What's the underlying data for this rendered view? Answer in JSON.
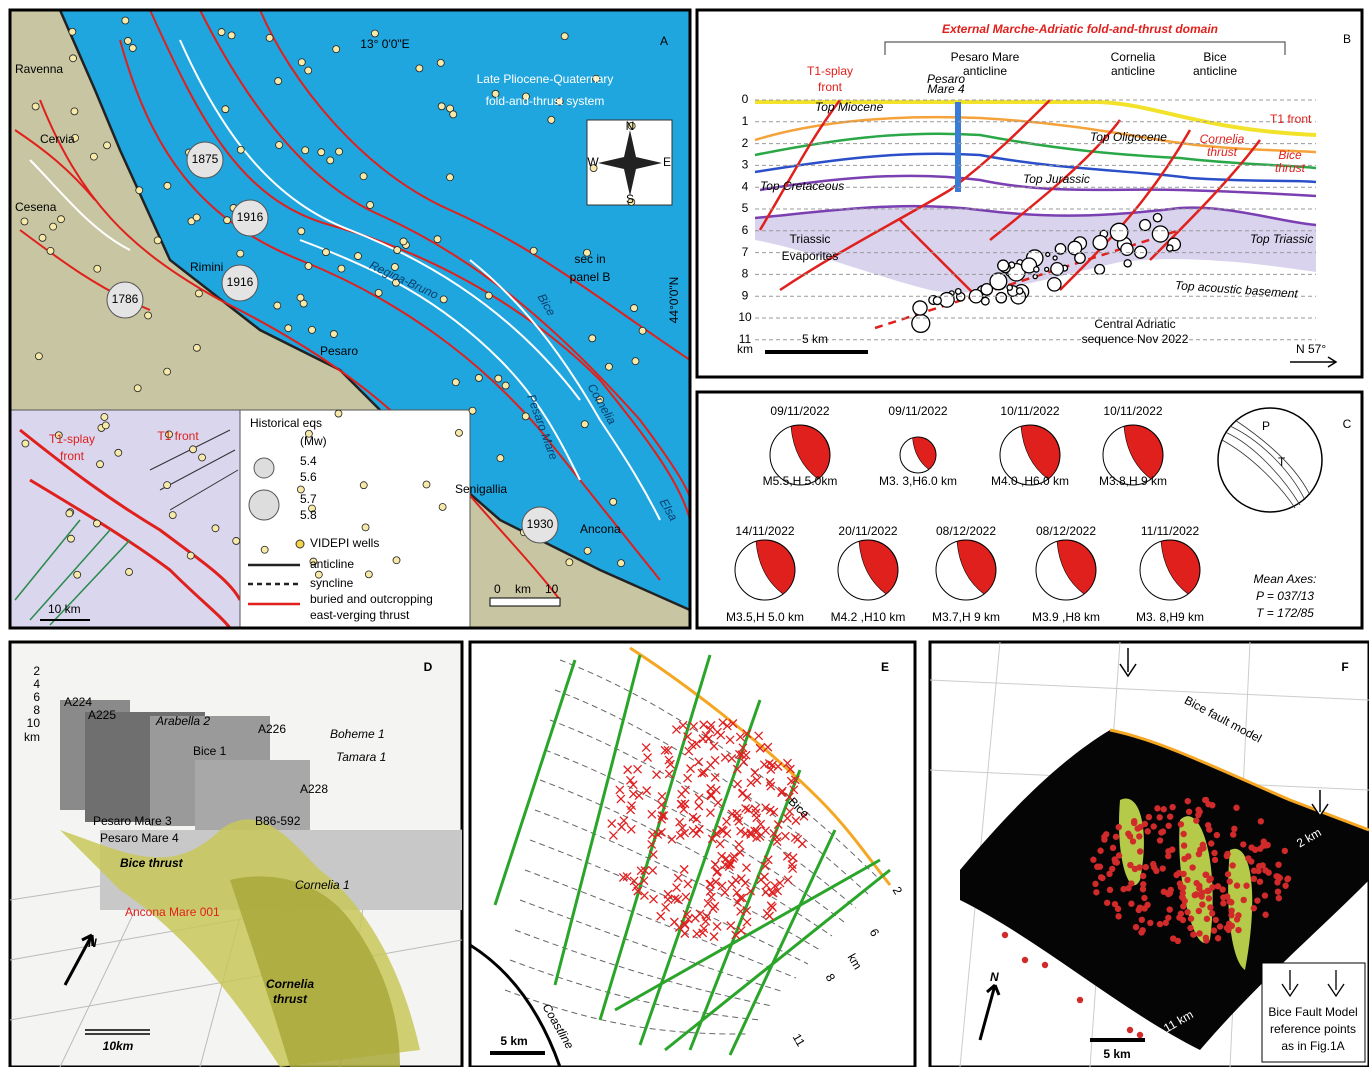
{
  "panel_a": {
    "label": "A",
    "longitude": "13° 0'0\"E",
    "latitude": "44°0'0\"N",
    "title_lines": [
      "Late Pliocene-Quaternary",
      "fold-and-thrust system"
    ],
    "towns": [
      "Ravenna",
      "Cervia",
      "Cesena",
      "Rimini",
      "Pesaro",
      "Senigallia",
      "Ancona"
    ],
    "historical_years": [
      "1875",
      "1916",
      "1916",
      "1786",
      "1930"
    ],
    "structures": [
      "Regina-Bruno",
      "Bice",
      "Cornelia",
      "Pesaro Mare",
      "Elsa"
    ],
    "section_note": [
      "sec in",
      "panel B"
    ],
    "compass": [
      "N",
      "S",
      "W",
      "E"
    ],
    "inset": {
      "splay": [
        "T1-splay",
        "front"
      ],
      "front": "T1 front",
      "scale": "10 km"
    },
    "legend": {
      "title": "Historical eqs",
      "unit": "(Mw)",
      "magnitudes": [
        "5.4",
        "5.6",
        "5.7",
        "5.8"
      ],
      "items": [
        "VIDEPI wells",
        "anticline",
        "syncline",
        "buried and outcropping",
        "east-verging thrust"
      ]
    },
    "scale": [
      "0",
      "km",
      "10"
    ]
  },
  "panel_b": {
    "label": "B",
    "title": "External Marche-Adriatic fold-and-thrust domain",
    "splay": [
      "T1-splay",
      "front"
    ],
    "pesaro_anticline": [
      "Pesaro Mare",
      "anticline"
    ],
    "pesaro_well": [
      "Pesaro",
      "Mare 4"
    ],
    "cornelia_anticline": [
      "Cornelia",
      "anticline"
    ],
    "bice_anticline": [
      "Bice",
      "anticline"
    ],
    "depths": [
      0,
      1,
      2,
      3,
      4,
      5,
      6,
      7,
      8,
      9,
      10,
      11
    ],
    "depth_unit": "km",
    "horizons": [
      "Top Miocene",
      "Top Oligocene",
      "Top Cretaceous",
      "Top Jurassic",
      "Top Triassic",
      "Top acoustic basement"
    ],
    "t1_front": "T1 front",
    "cornelia_thrust": [
      "Cornelia",
      "thrust"
    ],
    "bice_thrust": [
      "Bice",
      "thrust"
    ],
    "evaporites": [
      "Triassic",
      "Evaporites"
    ],
    "sequence": [
      "Central Adriatic",
      "sequence Nov 2022"
    ],
    "scale": "5 km",
    "direction": "N 57°"
  },
  "panel_c": {
    "label": "C",
    "mechanisms": [
      {
        "date": "09/11/2022",
        "caption": "M5.5,H 5.0km"
      },
      {
        "date": "09/11/2022",
        "caption": "M3. 3,H6.0 km"
      },
      {
        "date": "10/11/2022",
        "caption": "M4.0 ,H6.0 km"
      },
      {
        "date": "10/11/2022",
        "caption": "M3.8,H 9 km"
      },
      {
        "date": "14/11/2022",
        "caption": "M3.5,H 5.0 km"
      },
      {
        "date": "20/11/2022",
        "caption": "M4.2 ,H10 km"
      },
      {
        "date": "08/12/2022",
        "caption": "M3.7,H 9 km"
      },
      {
        "date": "08/12/2022",
        "caption": "M3.9 ,H8 km"
      },
      {
        "date": "11/11/2022",
        "caption": "M3. 8,H9 km"
      }
    ],
    "stereonet_axes": [
      "P",
      "T"
    ],
    "mean_axes": [
      "Mean Axes:",
      "P = 037/13",
      "T = 172/85"
    ]
  },
  "panel_d": {
    "label": "D",
    "wells": [
      "A224",
      "A225",
      "Arabella 2",
      "Bice 1",
      "A226",
      "Boheme 1",
      "Tamara 1",
      "A228",
      "B86-592",
      "Pesaro Mare 3",
      "Pesaro Mare 4",
      "Ancona Mare 001",
      "Cornelia 1"
    ],
    "bice_thrust": "Bice thrust",
    "cornelia_thrust": [
      "Cornelia",
      "thrust"
    ],
    "north": "N",
    "scale": "10km",
    "depths": [
      2,
      4,
      6,
      8,
      10
    ],
    "depth_unit": "km"
  },
  "panel_e": {
    "label": "E",
    "fault": "Bice",
    "contours": [
      "2",
      "6",
      "8",
      "11"
    ],
    "contour_unit": "km",
    "coastline": "Coastline",
    "scale": "5 km"
  },
  "panel_f": {
    "label": "F",
    "title": "Bice fault model",
    "top_depth": "2 km",
    "bottom_depth": "11 km",
    "north": "N",
    "scale": "5 km",
    "legend": [
      "Bice Fault Model",
      "reference points",
      "as in Fig.1A"
    ]
  }
}
